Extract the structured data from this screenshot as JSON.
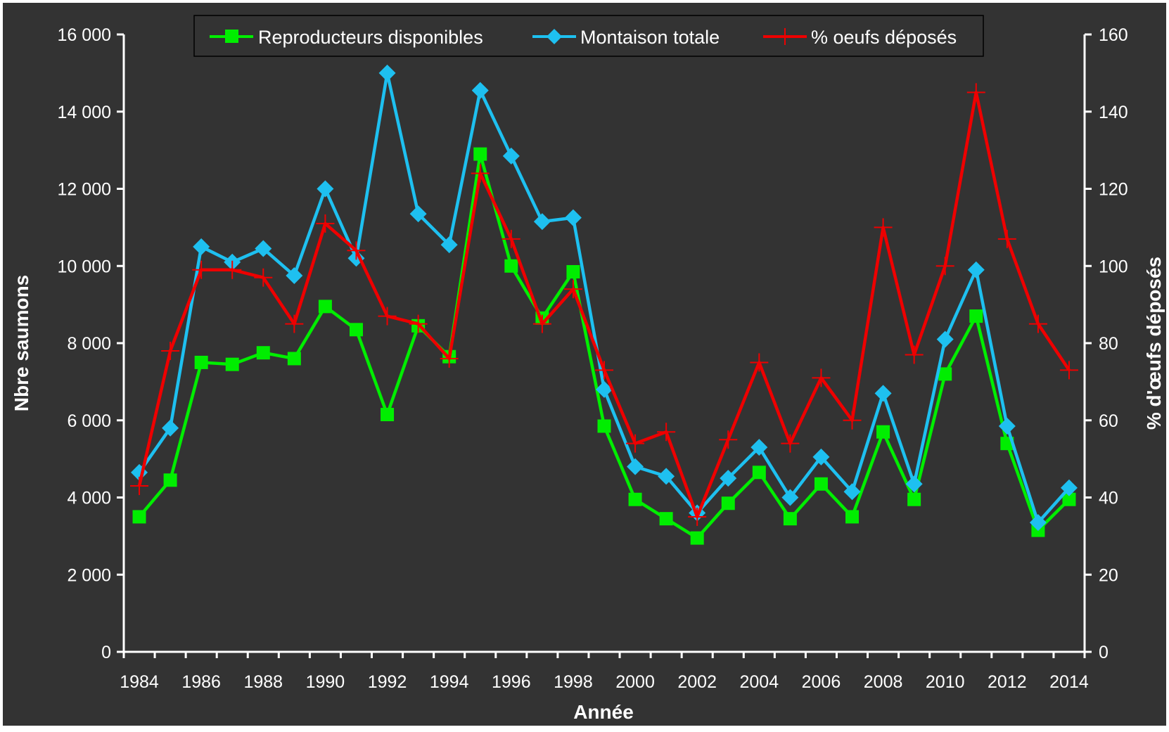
{
  "chart_data": {
    "type": "line",
    "xlabel": "Année",
    "ylabel_left": "Nbre saumons",
    "ylabel_right": "% d'œufs déposés",
    "years": [
      1984,
      1985,
      1986,
      1987,
      1988,
      1989,
      1990,
      1991,
      1992,
      1993,
      1994,
      1995,
      1996,
      1997,
      1998,
      1999,
      2000,
      2001,
      2002,
      2003,
      2004,
      2005,
      2006,
      2007,
      2008,
      2009,
      2010,
      2011,
      2012,
      2013,
      2014
    ],
    "x_tick_labels": [
      "1984",
      "1986",
      "1988",
      "1990",
      "1992",
      "1994",
      "1996",
      "1998",
      "2000",
      "2002",
      "2004",
      "2006",
      "2008",
      "2010",
      "2012",
      "2014"
    ],
    "y_left_tick_labels": [
      "0",
      "2 000",
      "4 000",
      "6 000",
      "8 000",
      "10 000",
      "12 000",
      "14 000",
      "16 000"
    ],
    "y_right_tick_labels": [
      "0",
      "20",
      "40",
      "60",
      "80",
      "100",
      "120",
      "140",
      "160"
    ],
    "ylim_left": [
      0,
      16000
    ],
    "ylim_right": [
      0,
      160
    ],
    "grid": false,
    "legend_position": "top",
    "background_color": "#333333",
    "series": [
      {
        "name": "Reproducteurs disponibles",
        "axis": "left",
        "color": "#00ee00",
        "marker": "square",
        "values": [
          3500,
          4450,
          7500,
          7450,
          7750,
          7600,
          8950,
          8350,
          6150,
          8450,
          7650,
          12900,
          10000,
          8650,
          9850,
          5850,
          3950,
          3450,
          2950,
          3850,
          4650,
          3450,
          4350,
          3500,
          5700,
          3950,
          7200,
          8700,
          5400,
          3150,
          3950
        ]
      },
      {
        "name": "Montaison totale",
        "axis": "left",
        "color": "#1ec0f0",
        "marker": "diamond",
        "values": [
          4650,
          5800,
          10500,
          10100,
          10450,
          9750,
          12000,
          10200,
          15000,
          11350,
          10550,
          14550,
          12850,
          11150,
          11250,
          6800,
          4800,
          4550,
          3600,
          4500,
          5300,
          4000,
          5050,
          4150,
          6700,
          4350,
          8100,
          9900,
          5850,
          3350,
          4250
        ]
      },
      {
        "name": "% oeufs déposés",
        "axis": "right",
        "color": "#ee0000",
        "marker": "plus",
        "values": [
          43,
          78,
          99,
          99,
          97,
          85,
          111,
          104,
          87,
          85,
          76,
          124,
          107,
          85,
          94,
          73,
          54,
          57,
          35,
          55,
          75,
          54,
          71,
          60,
          110,
          77,
          100,
          145,
          107,
          85,
          73
        ]
      }
    ]
  }
}
